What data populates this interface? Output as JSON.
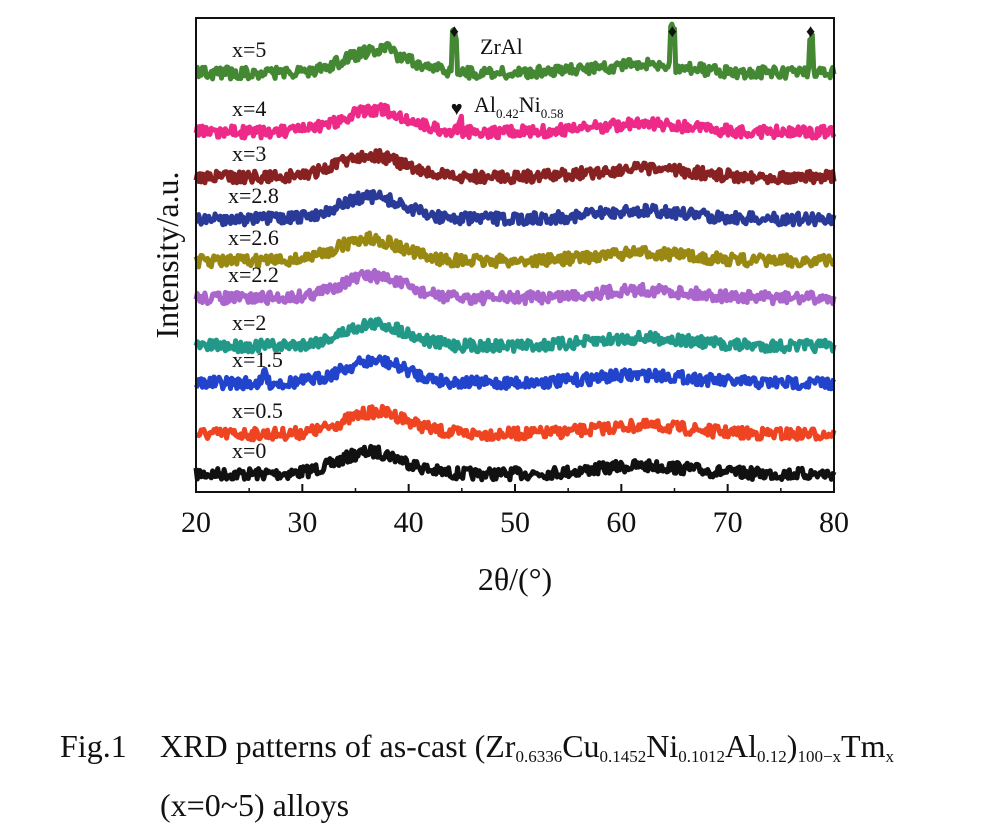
{
  "chart_data": {
    "type": "line",
    "title": "",
    "xlabel": "2θ/(°)",
    "ylabel": "Intensity/a.u.",
    "xlim": [
      20,
      80
    ],
    "xticks": [
      "20",
      "30",
      "40",
      "50",
      "60",
      "70",
      "80"
    ],
    "grid": false,
    "series": [
      {
        "name": "x=0",
        "color": "#111111",
        "hump_center": 36.5,
        "peaks": []
      },
      {
        "name": "x=0.5",
        "color": "#ee4422",
        "hump_center": 37.0,
        "peaks": []
      },
      {
        "name": "x=1.5",
        "color": "#2244cc",
        "hump_center": 36.8,
        "peaks": [
          26.5
        ]
      },
      {
        "name": "x=2",
        "color": "#229988",
        "hump_center": 36.8,
        "peaks": []
      },
      {
        "name": "x=2.2",
        "color": "#aa66cc",
        "hump_center": 36.5,
        "peaks": []
      },
      {
        "name": "x=2.6",
        "color": "#998811",
        "hump_center": 36.3,
        "peaks": []
      },
      {
        "name": "x=2.8",
        "color": "#2a3a99",
        "hump_center": 36.5,
        "peaks": []
      },
      {
        "name": "x=3",
        "color": "#882222",
        "hump_center": 36.3,
        "peaks": []
      },
      {
        "name": "x=4",
        "color": "#ee2a88",
        "hump_center": 36.8,
        "peaks": [
          44.8
        ]
      },
      {
        "name": "x=5",
        "color": "#448833",
        "hump_center": 37.0,
        "peaks": [
          38.0,
          44.3,
          64.8,
          77.8
        ]
      }
    ],
    "phase_markers": [
      {
        "symbol": "♦",
        "label": "ZrAl",
        "positions": [
          44.3,
          64.8,
          77.8
        ]
      },
      {
        "symbol": "♥",
        "label": "Al",
        "sub1": "0.42",
        "label2": "Ni",
        "sub2": "0.58",
        "positions": [
          44.8
        ]
      }
    ]
  },
  "caption": {
    "number": "Fig.1",
    "text_a": "XRD patterns of as-cast (Zr",
    "s1": "0.6336",
    "text_b": "Cu",
    "s2": "0.1452",
    "text_c": "Ni",
    "s3": "0.1012",
    "text_d": "Al",
    "s4": "0.12",
    "text_e": ")",
    "s5": "100−x",
    "text_f": "Tm",
    "s6": "x",
    "line2": "(x=0~5) alloys"
  }
}
